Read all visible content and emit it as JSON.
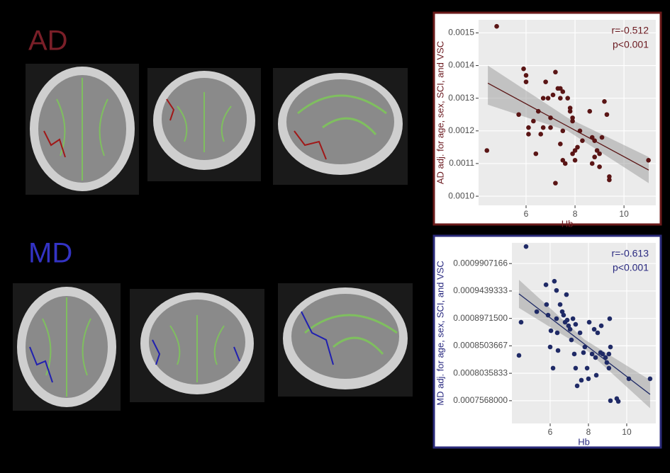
{
  "panels": [
    {
      "label": "AD"
    },
    {
      "label": "MD"
    }
  ],
  "chart_data": [
    {
      "type": "scatter",
      "xlabel": "Hb",
      "ylabel": "AD adj. for age, sex, SCI, and VSC",
      "annotations": [
        "r=-0.512",
        "p<0.001"
      ],
      "color": "#5a1515",
      "line_color": "#5a1515",
      "axis_text_color": "#6b1a20",
      "x": [
        4.8,
        4.4,
        5.7,
        5.9,
        6.0,
        6.1,
        6.1,
        6.0,
        6.3,
        6.4,
        6.5,
        6.6,
        6.7,
        6.7,
        6.8,
        6.9,
        7.0,
        7.0,
        7.1,
        7.2,
        7.3,
        7.4,
        7.5,
        7.4,
        7.5,
        7.4,
        7.5,
        7.6,
        7.7,
        7.8,
        7.8,
        7.9,
        7.9,
        7.9,
        8.0,
        8.0,
        8.1,
        8.2,
        8.3,
        8.6,
        8.7,
        8.7,
        8.8,
        8.9,
        9.0,
        9.0,
        9.2,
        9.3,
        9.4,
        9.4,
        7.2,
        11.0,
        9.1,
        8.8
      ],
      "values": [
        0.00152,
        0.00114,
        0.00125,
        0.00139,
        0.00137,
        0.00119,
        0.00121,
        0.00135,
        0.00123,
        0.00113,
        0.00126,
        0.00119,
        0.00121,
        0.0013,
        0.00135,
        0.0013,
        0.00124,
        0.00121,
        0.00131,
        0.00138,
        0.00133,
        0.00133,
        0.00132,
        0.0013,
        0.0012,
        0.00116,
        0.00111,
        0.0011,
        0.0013,
        0.00127,
        0.00126,
        0.00124,
        0.00123,
        0.00113,
        0.00111,
        0.00114,
        0.00115,
        0.0012,
        0.00117,
        0.00126,
        0.00118,
        0.0011,
        0.00117,
        0.00114,
        0.00113,
        0.00109,
        0.00129,
        0.00125,
        0.00106,
        0.00105,
        0.00104,
        0.00111,
        0.00118,
        0.00112
      ],
      "fit_x": [
        4.44,
        11.01
      ],
      "fit_values": [
        0.001346,
        0.00108
      ],
      "band_x": [
        4.44,
        7.7,
        11.01
      ],
      "band_lower": [
        0.00128,
        0.0012,
        0.00104
      ],
      "band_upper": [
        0.0014,
        0.00124,
        0.00112
      ],
      "xlim": [
        4.06,
        11.3
      ],
      "ylim": [
        0.000972,
        0.00154
      ],
      "xticks": [
        6,
        8,
        10
      ],
      "yticks": [
        {
          "value": 0.001,
          "label": "0.0010"
        },
        0.0011,
        0.0012,
        0.0013,
        0.0014,
        0.0015
      ],
      "grid": true
    },
    {
      "type": "scatter",
      "xlabel": "Hb",
      "ylabel": "MD adj. for age, sex, SCI, and VSC",
      "annotations": [
        "r=-0.613",
        "p<0.001"
      ],
      "color": "#1f2a66",
      "line_color": "#1f2a66",
      "axis_text_color": "#2a2a80",
      "x": [
        4.74,
        4.37,
        5.3,
        5.78,
        5.81,
        5.89,
        6.04,
        6.0,
        6.15,
        6.22,
        6.33,
        6.33,
        6.37,
        6.41,
        6.52,
        6.63,
        6.7,
        6.78,
        6.85,
        6.89,
        6.96,
        7.04,
        7.11,
        7.19,
        7.26,
        7.33,
        7.33,
        7.41,
        7.56,
        7.63,
        7.74,
        7.81,
        7.93,
        8.0,
        8.04,
        8.19,
        8.3,
        8.37,
        8.41,
        8.48,
        8.63,
        8.67,
        8.74,
        8.89,
        8.96,
        9.07,
        9.07,
        9.11,
        9.15,
        9.15,
        9.48,
        9.56,
        10.11,
        11.22,
        4.48
      ],
      "values": [
        0.0010197,
        0.000834,
        0.0009087,
        0.0009545,
        0.0009208,
        0.0009027,
        0.0008762,
        0.0008484,
        0.0008123,
        0.0009606,
        0.0009449,
        0.0008967,
        0.0008726,
        0.0008424,
        0.0009208,
        0.0009087,
        0.0009027,
        0.0008906,
        0.0009377,
        0.0008943,
        0.0008846,
        0.0008786,
        0.0008605,
        0.0008967,
        0.0008364,
        0.000887,
        0.0008123,
        0.0007821,
        0.0008726,
        0.0007917,
        0.0008388,
        0.0008484,
        0.0008123,
        0.0007942,
        0.0008906,
        0.0008364,
        0.0008786,
        0.0008304,
        0.0008002,
        0.0008726,
        0.0008388,
        0.0008846,
        0.0008364,
        0.0008304,
        0.0008219,
        0.0008123,
        0.0008364,
        0.0008967,
        0.0007568,
        0.0008484,
        0.0007604,
        0.0007556,
        0.0007942,
        0.0007942,
        0.0008906
      ],
      "fit_x": [
        4.37,
        11.22
      ],
      "fit_values": [
        0.000939,
        0.0007676
      ],
      "band_x": [
        4.37,
        7.8,
        11.22
      ],
      "band_lower": [
        0.000915,
        0.000846,
        0.000744
      ],
      "band_upper": [
        0.000963,
        0.000861,
        0.000792
      ],
      "xlim": [
        4.0,
        11.52
      ],
      "ylim": [
        0.000718,
        0.001026
      ],
      "xticks": [
        6,
        8,
        10
      ],
      "yticks": [
        {
          "value": 0.0007568,
          "label": "0.0007568000"
        },
        0.0008035833,
        0.0008503667,
        {
          "value": 0.00089715,
          "label": "0.0008971500"
        },
        0.0009439333,
        0.0009907166
      ],
      "grid": true
    }
  ]
}
